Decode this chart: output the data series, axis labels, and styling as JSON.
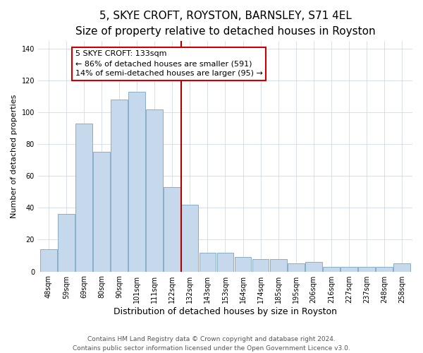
{
  "title": "5, SKYE CROFT, ROYSTON, BARNSLEY, S71 4EL",
  "subtitle": "Size of property relative to detached houses in Royston",
  "xlabel": "Distribution of detached houses by size in Royston",
  "ylabel": "Number of detached properties",
  "bar_labels": [
    "48sqm",
    "59sqm",
    "69sqm",
    "80sqm",
    "90sqm",
    "101sqm",
    "111sqm",
    "122sqm",
    "132sqm",
    "143sqm",
    "153sqm",
    "164sqm",
    "174sqm",
    "185sqm",
    "195sqm",
    "206sqm",
    "216sqm",
    "227sqm",
    "237sqm",
    "248sqm",
    "258sqm"
  ],
  "bar_values": [
    14,
    36,
    93,
    75,
    108,
    113,
    102,
    53,
    42,
    12,
    12,
    9,
    8,
    8,
    5,
    6,
    3,
    3,
    3,
    3,
    5
  ],
  "bar_color": "#c5d8ec",
  "bar_edge_color": "#8aaec8",
  "vline_x_index": 8,
  "vline_color": "#aa0000",
  "annotation_line1": "5 SKYE CROFT: 133sqm",
  "annotation_line2": "← 86% of detached houses are smaller (591)",
  "annotation_line3": "14% of semi-detached houses are larger (95) →",
  "annotation_box_color": "#ffffff",
  "annotation_box_edgecolor": "#cc0000",
  "ylim": [
    0,
    145
  ],
  "yticks": [
    0,
    20,
    40,
    60,
    80,
    100,
    120,
    140
  ],
  "footer1": "Contains HM Land Registry data © Crown copyright and database right 2024.",
  "footer2": "Contains public sector information licensed under the Open Government Licence v3.0.",
  "title_fontsize": 11,
  "subtitle_fontsize": 9.5,
  "xlabel_fontsize": 9,
  "ylabel_fontsize": 8,
  "tick_fontsize": 7,
  "footer_fontsize": 6.5,
  "annotation_fontsize": 8
}
